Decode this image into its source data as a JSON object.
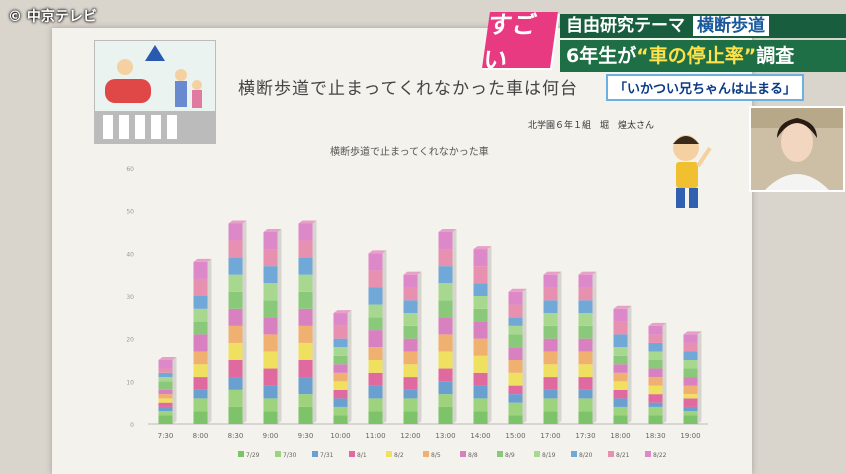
{
  "channel": {
    "logo_text": "© 中京テレビ"
  },
  "banner": {
    "badge": "すごい",
    "theme_prefix": "自由研究テーマ",
    "theme_keyword": "横断歩道",
    "subtitle_part1": "6年生が",
    "subtitle_highlight": "“車の停止率”",
    "subtitle_part2": "調査",
    "quote": "「いかつい兄ちゃんは止まる」"
  },
  "poster": {
    "title": "横断歩道で止まってくれなかった車は何台",
    "author": "北学園６年１組　堀　煌太さん"
  },
  "chart_data": {
    "type": "bar",
    "stacked": true,
    "title": "横断歩道で止まってくれなかった車",
    "xlabel": "",
    "ylabel": "",
    "ylim": [
      0,
      60
    ],
    "yticks": [
      0,
      10,
      20,
      30,
      40,
      50,
      60
    ],
    "categories": [
      "7:30",
      "8:00",
      "8:30",
      "9:00",
      "9:30",
      "10:00",
      "11:00",
      "12:00",
      "13:00",
      "14:00",
      "15:00",
      "17:00",
      "17:30",
      "18:00",
      "18:30",
      "19:00"
    ],
    "legend_position": "bottom",
    "series": [
      {
        "name": "7/29",
        "color": "#7cc36a",
        "values": [
          2,
          3,
          4,
          3,
          4,
          2,
          3,
          3,
          4,
          3,
          2,
          3,
          3,
          2,
          2,
          2
        ]
      },
      {
        "name": "7/30",
        "color": "#9ed37e",
        "values": [
          1,
          3,
          4,
          3,
          3,
          2,
          3,
          3,
          3,
          3,
          3,
          3,
          3,
          2,
          2,
          1
        ]
      },
      {
        "name": "7/31",
        "color": "#6aa0d0",
        "values": [
          1,
          2,
          3,
          3,
          4,
          2,
          3,
          2,
          3,
          3,
          2,
          2,
          2,
          2,
          1,
          1
        ]
      },
      {
        "name": "8/1",
        "color": "#e06aa0",
        "values": [
          1,
          3,
          4,
          4,
          4,
          2,
          3,
          3,
          3,
          3,
          2,
          3,
          3,
          2,
          2,
          2
        ]
      },
      {
        "name": "8/2",
        "color": "#f0e060",
        "values": [
          1,
          3,
          4,
          4,
          4,
          2,
          3,
          3,
          4,
          4,
          3,
          3,
          3,
          2,
          2,
          1
        ]
      },
      {
        "name": "8/5",
        "color": "#f0b070",
        "values": [
          1,
          3,
          4,
          4,
          4,
          2,
          3,
          3,
          4,
          4,
          3,
          3,
          3,
          2,
          2,
          2
        ]
      },
      {
        "name": "8/8",
        "color": "#d880c0",
        "values": [
          1,
          4,
          4,
          4,
          4,
          2,
          4,
          3,
          4,
          4,
          3,
          3,
          3,
          2,
          2,
          2
        ]
      },
      {
        "name": "8/9",
        "color": "#8ac87a",
        "values": [
          2,
          3,
          4,
          4,
          4,
          2,
          3,
          3,
          4,
          3,
          3,
          3,
          3,
          2,
          2,
          2
        ]
      },
      {
        "name": "8/19",
        "color": "#a8d890",
        "values": [
          1,
          3,
          4,
          4,
          4,
          2,
          3,
          3,
          4,
          3,
          2,
          3,
          3,
          2,
          2,
          2
        ]
      },
      {
        "name": "8/20",
        "color": "#70a8d8",
        "values": [
          1,
          3,
          4,
          4,
          4,
          2,
          4,
          3,
          4,
          3,
          2,
          3,
          3,
          3,
          2,
          2
        ]
      },
      {
        "name": "8/21",
        "color": "#e890b0",
        "values": [
          1,
          4,
          4,
          4,
          4,
          3,
          4,
          3,
          4,
          4,
          3,
          3,
          3,
          3,
          2,
          2
        ]
      },
      {
        "name": "8/22",
        "color": "#dd88c8",
        "values": [
          2,
          4,
          4,
          4,
          4,
          3,
          4,
          3,
          4,
          4,
          3,
          3,
          3,
          3,
          2,
          2
        ]
      }
    ]
  }
}
